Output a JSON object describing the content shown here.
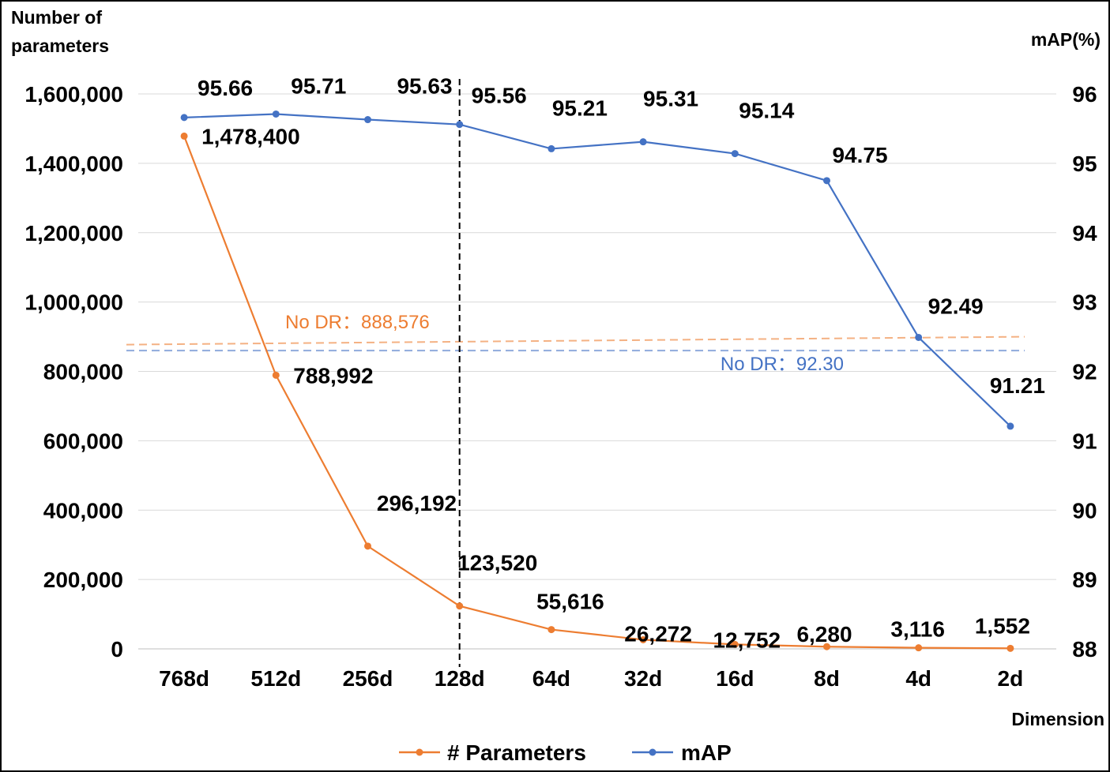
{
  "chart_data": {
    "type": "line",
    "categories": [
      "768d",
      "512d",
      "256d",
      "128d",
      "64d",
      "32d",
      "16d",
      "8d",
      "4d",
      "2d"
    ],
    "series": [
      {
        "name": "# Parameters",
        "axis": "left",
        "color": "#ED7D31",
        "values": [
          1478400,
          788992,
          296192,
          123520,
          55616,
          26272,
          12752,
          6280,
          3116,
          1552
        ],
        "labels": [
          "1,478,400",
          "788,992",
          "296,192",
          "123,520",
          "55,616",
          "26,272",
          "12,752",
          "6,280",
          "3,116",
          "1,552"
        ]
      },
      {
        "name": "mAP",
        "axis": "right",
        "color": "#4472C4",
        "values": [
          95.66,
          95.71,
          95.63,
          95.56,
          95.21,
          95.31,
          95.14,
          94.75,
          92.49,
          91.21
        ],
        "labels": [
          "95.66",
          "95.71",
          "95.63",
          "95.56",
          "95.21",
          "95.31",
          "95.14",
          "94.75",
          "92.49",
          "91.21"
        ]
      }
    ],
    "ylabel": "Number of parameters",
    "ylabel_lines": [
      "Number of",
      "parameters"
    ],
    "y2label": "mAP(%)",
    "xlabel": "Dimension",
    "ylim": [
      0,
      1600000
    ],
    "y2lim": [
      88,
      96
    ],
    "yticks": [
      0,
      200000,
      400000,
      600000,
      800000,
      1000000,
      1200000,
      1400000,
      1600000
    ],
    "yticks_labels": [
      "0",
      "200,000",
      "400,000",
      "600,000",
      "800,000",
      "1,000,000",
      "1,200,000",
      "1,400,000",
      "1,600,000"
    ],
    "y2ticks": [
      88,
      89,
      90,
      91,
      92,
      93,
      94,
      95,
      96
    ],
    "y2ticks_labels": [
      "88",
      "89",
      "90",
      "91",
      "92",
      "93",
      "94",
      "95",
      "96"
    ],
    "reference_lines": [
      {
        "label": "No DR：888,576",
        "axis": "left",
        "value": 888576,
        "color": "#F4B183"
      },
      {
        "label": "No DR：92.30",
        "axis": "right",
        "value": 92.3,
        "color": "#8FAADC"
      }
    ],
    "divider_after_category": "128d",
    "legend": "bottom",
    "grid": true
  }
}
